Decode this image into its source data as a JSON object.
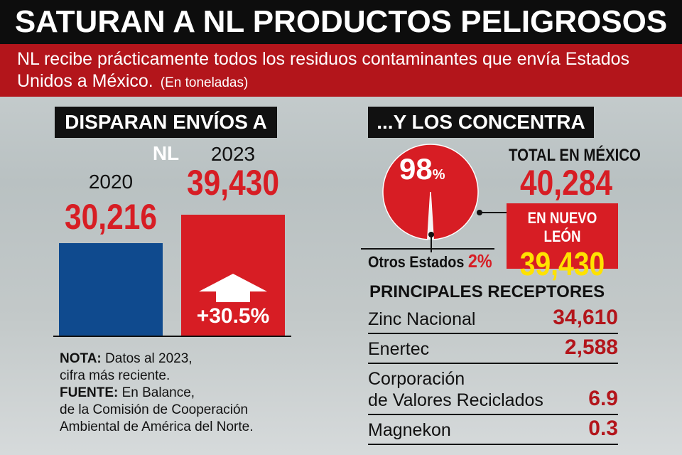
{
  "header": {
    "title": "SATURAN A NL PRODUCTOS PELIGROSOS",
    "subtitle": "NL recibe prácticamente todos los residuos contaminantes que envía Estados Unidos a México.",
    "unit_note": "(En toneladas)"
  },
  "left": {
    "heading": "DISPARAN ENVÍOS A NL",
    "change_label": "+30.5%"
  },
  "chart_data": [
    {
      "type": "bar",
      "categories": [
        "2020",
        "2023"
      ],
      "values": [
        30216,
        39430
      ],
      "value_labels": [
        "30,216",
        "39,430"
      ],
      "colors": [
        "#0f4a8e",
        "#d71d24"
      ],
      "annotation": "+30.5%"
    },
    {
      "type": "pie",
      "slices": [
        {
          "label": "Nuevo León",
          "value": 98,
          "display": "98%"
        },
        {
          "label": "Otros Estados",
          "value": 2,
          "display": "2%"
        }
      ],
      "color": "#d71d24"
    }
  ],
  "right": {
    "heading": "...Y LOS CONCENTRA",
    "pie_main": "98",
    "pie_main_unit": "%",
    "others_label": "Otros Estados",
    "others_value": "2%",
    "total_label": "TOTAL EN MÉXICO",
    "total_value": "40,284",
    "nl_label": "EN NUEVO LEÓN",
    "nl_value": "39,430"
  },
  "receptores": {
    "heading": "PRINCIPALES RECEPTORES",
    "rows": [
      {
        "name": "Zinc Nacional",
        "value": "34,610"
      },
      {
        "name": "Enertec",
        "value": "2,588"
      },
      {
        "name_line1": "Corporación",
        "name_line2": "de Valores Reciclados",
        "value": "6.9"
      },
      {
        "name": "Magnekon",
        "value": "0.3"
      }
    ]
  },
  "note": {
    "nota_label": "NOTA:",
    "nota_text": " Datos al 2023,",
    "nota_text2": "cifra más reciente.",
    "fuente_label": "FUENTE:",
    "fuente_text": " En Balance,",
    "fuente_text2": "de la Comisión de Cooperación",
    "fuente_text3": "Ambiental de América del Norte."
  }
}
